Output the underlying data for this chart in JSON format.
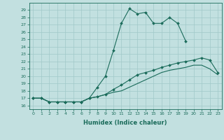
{
  "xlabel": "Humidex (Indice chaleur)",
  "background_color": "#c2e0e0",
  "grid_color": "#a0c8c8",
  "line_color": "#1a6b5a",
  "xlim": [
    -0.5,
    23.5
  ],
  "ylim": [
    15.5,
    30
  ],
  "xticks": [
    0,
    1,
    2,
    3,
    4,
    5,
    6,
    7,
    8,
    9,
    10,
    11,
    12,
    13,
    14,
    15,
    16,
    17,
    18,
    19,
    20,
    21,
    22,
    23
  ],
  "yticks": [
    16,
    17,
    18,
    19,
    20,
    21,
    22,
    23,
    24,
    25,
    26,
    27,
    28,
    29
  ],
  "series1_x": [
    0,
    1,
    2,
    3,
    4,
    5,
    6,
    7,
    8,
    9,
    10,
    11,
    12,
    13,
    14,
    15,
    16,
    17,
    18,
    19
  ],
  "series1_y": [
    17.0,
    17.0,
    16.5,
    16.5,
    16.5,
    16.5,
    16.5,
    17.0,
    18.5,
    20.0,
    23.5,
    27.2,
    29.2,
    28.5,
    28.7,
    27.2,
    27.2,
    28.0,
    27.2,
    24.8
  ],
  "series2_x": [
    0,
    1,
    2,
    3,
    4,
    5,
    6,
    7,
    8,
    9,
    10,
    11,
    12,
    13,
    14,
    15,
    16,
    17,
    18,
    19,
    20,
    21,
    22,
    23
  ],
  "series2_y": [
    17.0,
    17.0,
    16.5,
    16.5,
    16.5,
    16.5,
    16.5,
    17.0,
    17.2,
    17.5,
    18.2,
    18.8,
    19.5,
    20.2,
    20.5,
    20.8,
    21.2,
    21.5,
    21.8,
    22.0,
    22.2,
    22.5,
    22.2,
    20.5
  ],
  "series3_x": [
    0,
    1,
    2,
    3,
    4,
    5,
    6,
    7,
    8,
    9,
    10,
    11,
    12,
    13,
    14,
    15,
    16,
    17,
    18,
    19,
    20,
    21,
    22,
    23
  ],
  "series3_y": [
    17.0,
    17.0,
    16.5,
    16.5,
    16.5,
    16.5,
    16.5,
    17.0,
    17.2,
    17.5,
    17.8,
    18.0,
    18.5,
    19.0,
    19.5,
    20.0,
    20.5,
    20.8,
    21.0,
    21.2,
    21.5,
    21.5,
    21.0,
    20.2
  ],
  "tick_fontsize": 4.5,
  "xlabel_fontsize": 6.0
}
